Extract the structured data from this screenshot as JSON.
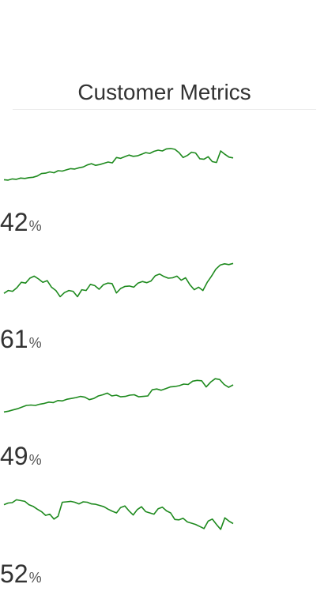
{
  "header": {
    "title": "Customer Metrics"
  },
  "colors": {
    "line": "#1e8a1e",
    "text": "#333333",
    "divider": "#ececec"
  },
  "metrics": [
    {
      "value": "42",
      "unit": "%",
      "trend": [
        0.95,
        0.96,
        0.93,
        0.94,
        0.91,
        0.92,
        0.9,
        0.89,
        0.86,
        0.8,
        0.79,
        0.76,
        0.78,
        0.73,
        0.74,
        0.71,
        0.68,
        0.69,
        0.66,
        0.64,
        0.59,
        0.56,
        0.6,
        0.58,
        0.55,
        0.52,
        0.54,
        0.41,
        0.43,
        0.39,
        0.35,
        0.38,
        0.37,
        0.33,
        0.29,
        0.31,
        0.26,
        0.23,
        0.25,
        0.2,
        0.19,
        0.21,
        0.29,
        0.41,
        0.36,
        0.28,
        0.3,
        0.44,
        0.45,
        0.39,
        0.51,
        0.53,
        0.25,
        0.33,
        0.4,
        0.42
      ]
    },
    {
      "value": "61",
      "unit": "%",
      "trend": [
        0.87,
        0.8,
        0.82,
        0.73,
        0.6,
        0.62,
        0.5,
        0.45,
        0.52,
        0.6,
        0.56,
        0.72,
        0.8,
        0.95,
        0.85,
        0.8,
        0.82,
        0.95,
        0.78,
        0.8,
        0.65,
        0.68,
        0.77,
        0.66,
        0.62,
        0.63,
        0.86,
        0.75,
        0.7,
        0.69,
        0.72,
        0.62,
        0.58,
        0.61,
        0.57,
        0.44,
        0.4,
        0.46,
        0.5,
        0.49,
        0.45,
        0.55,
        0.49,
        0.66,
        0.78,
        0.72,
        0.8,
        0.6,
        0.45,
        0.28,
        0.18,
        0.15,
        0.17,
        0.14
      ]
    },
    {
      "value": "49",
      "unit": "%",
      "trend": [
        0.91,
        0.89,
        0.86,
        0.83,
        0.79,
        0.75,
        0.74,
        0.75,
        0.72,
        0.7,
        0.67,
        0.68,
        0.63,
        0.64,
        0.6,
        0.58,
        0.56,
        0.53,
        0.55,
        0.61,
        0.58,
        0.52,
        0.49,
        0.45,
        0.52,
        0.5,
        0.54,
        0.53,
        0.5,
        0.49,
        0.54,
        0.53,
        0.52,
        0.37,
        0.35,
        0.38,
        0.34,
        0.3,
        0.29,
        0.27,
        0.23,
        0.24,
        0.16,
        0.14,
        0.15,
        0.3,
        0.18,
        0.1,
        0.12,
        0.24,
        0.31,
        0.25
      ]
    },
    {
      "value": "52",
      "unit": "%",
      "trend": [
        0.3,
        0.26,
        0.25,
        0.18,
        0.2,
        0.22,
        0.3,
        0.34,
        0.41,
        0.47,
        0.56,
        0.53,
        0.65,
        0.58,
        0.24,
        0.23,
        0.22,
        0.24,
        0.28,
        0.23,
        0.24,
        0.28,
        0.29,
        0.32,
        0.35,
        0.41,
        0.46,
        0.5,
        0.37,
        0.33,
        0.45,
        0.55,
        0.42,
        0.35,
        0.47,
        0.5,
        0.53,
        0.4,
        0.36,
        0.45,
        0.5,
        0.66,
        0.67,
        0.63,
        0.72,
        0.75,
        0.78,
        0.83,
        0.88,
        0.7,
        0.65,
        0.78,
        0.9,
        0.62,
        0.7,
        0.76
      ]
    }
  ]
}
